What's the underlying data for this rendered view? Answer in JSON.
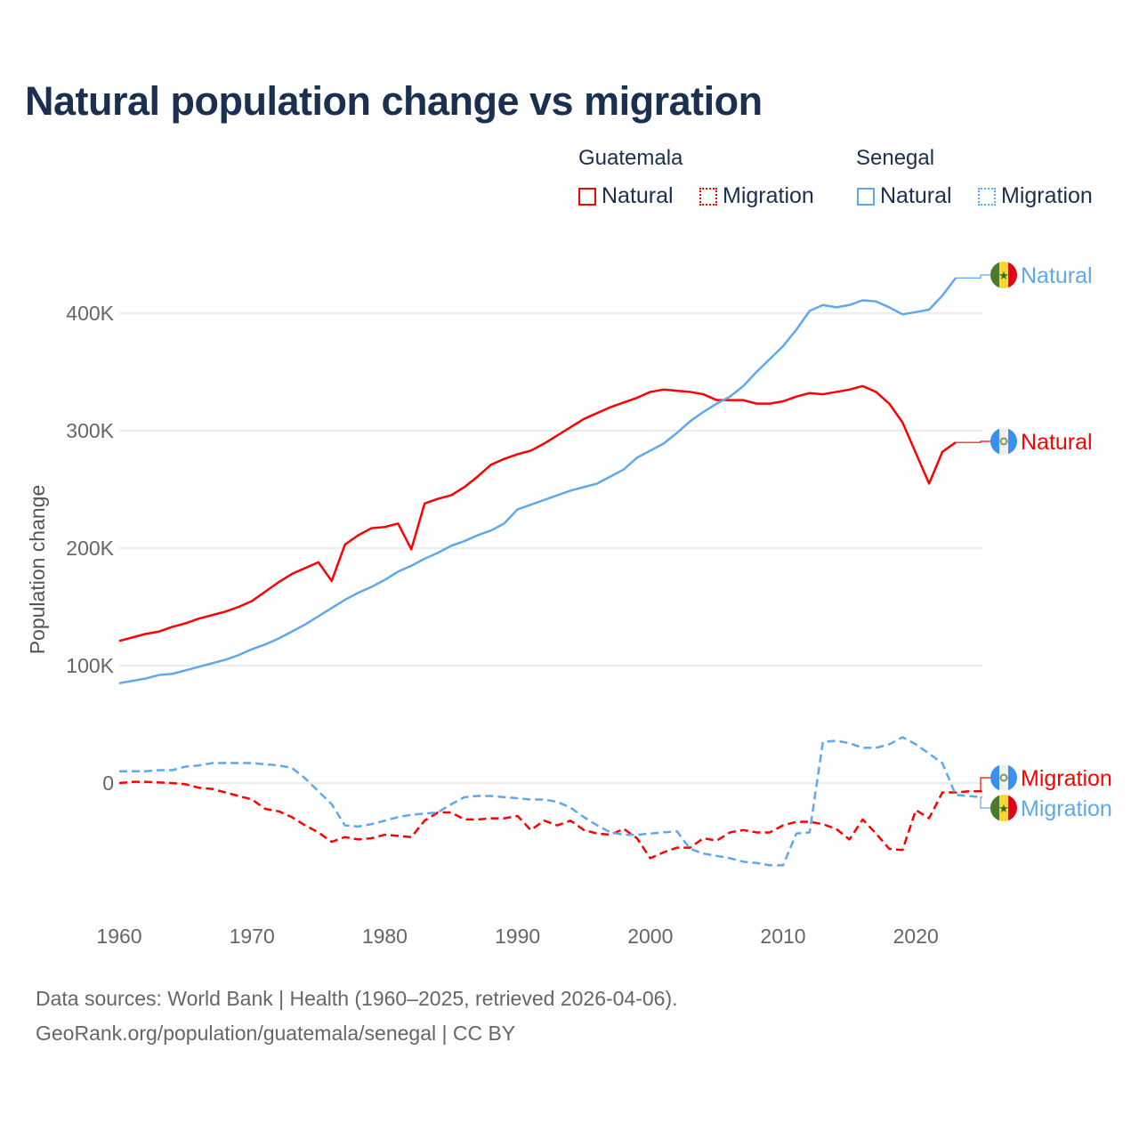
{
  "title": "Natural population change vs migration",
  "legend": {
    "groups": [
      {
        "name": "Guatemala",
        "items": [
          "Natural",
          "Migration"
        ],
        "color": "#ff0000"
      },
      {
        "name": "Senegal",
        "items": [
          "Natural",
          "Migration"
        ],
        "color": "#5fa8ee"
      }
    ]
  },
  "footer": {
    "line1": "Data sources: World Bank | Health (1960–2025, retrieved 2026-04-06).",
    "line2": "GeoRank.org/population/guatemala/senegal | CC BY"
  },
  "chart_data": {
    "type": "line",
    "title": "Natural population change vs migration",
    "xlabel": "",
    "ylabel": "Population change",
    "xlim": [
      1960,
      2025
    ],
    "ylim": [
      -100000,
      450000
    ],
    "x_ticks": [
      1960,
      1970,
      1980,
      1990,
      2000,
      2010,
      2020
    ],
    "y_ticks": [
      {
        "v": 0,
        "label": "0"
      },
      {
        "v": 100000,
        "label": "100K"
      },
      {
        "v": 200000,
        "label": "200K"
      },
      {
        "v": 300000,
        "label": "300K"
      },
      {
        "v": 400000,
        "label": "400K"
      }
    ],
    "x_start": 1960,
    "series": [
      {
        "name": "Guatemala Natural",
        "label": "Natural",
        "country": "Guatemala",
        "color": "#ff0000",
        "dash": false,
        "values": [
          121,
          124,
          127,
          129,
          133,
          136,
          140,
          143,
          146,
          150,
          155,
          163,
          171,
          178,
          183,
          188,
          172,
          203,
          211,
          217,
          218,
          221,
          199,
          238,
          242,
          245,
          252,
          261,
          271,
          276,
          280,
          283,
          289,
          296,
          303,
          310,
          315,
          320,
          324,
          328,
          333,
          335,
          334,
          333,
          331,
          326,
          326,
          326,
          323,
          323,
          325,
          329,
          332,
          331,
          333,
          335,
          338,
          333,
          323,
          307,
          281,
          255,
          282,
          290
        ]
      },
      {
        "name": "Guatemala Migration",
        "label": "Migration",
        "country": "Guatemala",
        "color": "#ff0000",
        "dash": true,
        "values": [
          0,
          1,
          1,
          0.5,
          0,
          -1,
          -4,
          -5,
          -8,
          -11,
          -14,
          -22,
          -24,
          -29,
          -36,
          -42,
          -50,
          -46,
          -48,
          -47,
          -44,
          -45,
          -46,
          -32,
          -25,
          -25,
          -31,
          -31,
          -30,
          -30,
          -28,
          -40,
          -32,
          -36,
          -32,
          -40,
          -43,
          -44,
          -39,
          -47,
          -64,
          -59,
          -55,
          -55,
          -47,
          -49,
          -42,
          -40,
          -42,
          -42,
          -36,
          -33,
          -33,
          -35,
          -39,
          -48,
          -31,
          -43,
          -56,
          -57,
          -23,
          -30,
          -8,
          -8,
          -7,
          -7
        ]
      },
      {
        "name": "Senegal Natural",
        "label": "Natural",
        "country": "Senegal",
        "color": "#5fa8ee",
        "dash": false,
        "values": [
          85,
          87,
          89,
          92,
          93,
          96,
          99,
          102,
          105,
          109,
          114,
          118,
          123,
          129,
          135,
          142,
          149,
          156,
          162,
          167,
          173,
          180,
          185,
          191,
          196,
          202,
          206,
          211,
          215,
          221,
          233,
          237,
          241,
          245,
          249,
          252,
          255,
          261,
          267,
          277,
          283,
          289,
          298,
          308,
          316,
          323,
          329,
          338,
          350,
          361,
          372,
          386,
          402,
          407,
          405,
          407,
          411,
          410,
          405,
          399,
          401,
          403,
          415,
          430
        ]
      },
      {
        "name": "Senegal Migration",
        "label": "Migration",
        "country": "Senegal",
        "color": "#5fa8ee",
        "dash": true,
        "values": [
          10,
          10,
          10,
          11,
          11,
          14,
          15,
          17,
          17,
          17,
          17,
          16,
          15,
          13,
          4,
          -7,
          -18,
          -36,
          -37,
          -35,
          -32,
          -29,
          -27,
          -26,
          -25,
          -18,
          -12,
          -11,
          -11,
          -12,
          -13,
          -14,
          -14,
          -16,
          -21,
          -29,
          -36,
          -42,
          -44,
          -44,
          -43,
          -42,
          -41,
          -56,
          -60,
          -62,
          -64,
          -67,
          -68,
          -70,
          -70,
          -43,
          -42,
          35,
          36,
          34,
          30,
          30,
          33,
          39,
          33,
          25,
          17,
          -10,
          -11,
          -12
        ]
      }
    ],
    "value_unit": "thousands",
    "grid": true,
    "legend_position": "top-right"
  }
}
